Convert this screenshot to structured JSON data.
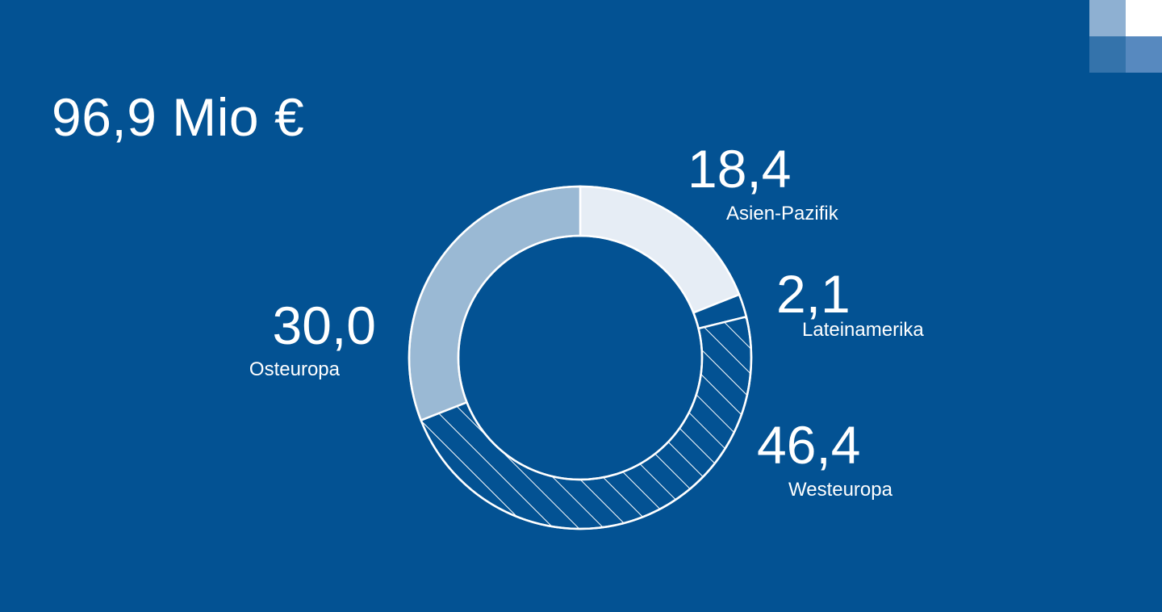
{
  "total": "96,9 Mio €",
  "colors": {
    "background": "#035293",
    "ring_stroke": "#ffffff",
    "corner_tiles": [
      "#8eb0d2",
      "#ffffff",
      "#3473ab",
      "#5789bf"
    ]
  },
  "chart_data": {
    "type": "pie",
    "style": "donut",
    "start_angle": "top",
    "direction": "clockwise",
    "legend": "none",
    "total_label": "96,9 Mio €",
    "categories": [
      "Asien-Pazifik",
      "Lateinamerika",
      "Westeuropa",
      "Osteuropa"
    ],
    "values": [
      18.4,
      2.1,
      46.4,
      30.0
    ],
    "value_labels": [
      "18,4",
      "2,1",
      "46,4",
      "30,0"
    ],
    "fills": [
      "#e6edf5",
      "#035293",
      "hatch",
      "#9ab9d4"
    ]
  }
}
